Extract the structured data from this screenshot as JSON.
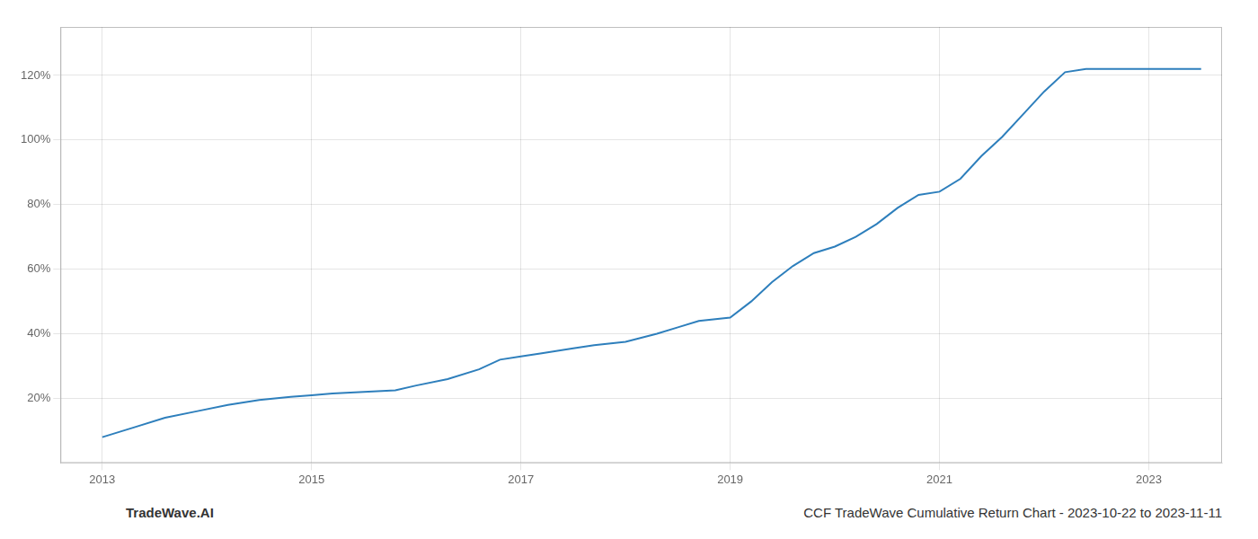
{
  "chart_data": {
    "type": "line",
    "x": [
      2013.0,
      2013.3,
      2013.6,
      2013.9,
      2014.2,
      2014.5,
      2014.8,
      2015.0,
      2015.2,
      2015.5,
      2015.8,
      2016.0,
      2016.3,
      2016.6,
      2016.8,
      2017.0,
      2017.2,
      2017.5,
      2017.7,
      2018.0,
      2018.3,
      2018.5,
      2018.7,
      2019.0,
      2019.2,
      2019.4,
      2019.6,
      2019.8,
      2020.0,
      2020.2,
      2020.4,
      2020.6,
      2020.8,
      2021.0,
      2021.2,
      2021.4,
      2021.6,
      2021.8,
      2022.0,
      2022.2,
      2022.4,
      2022.6,
      2022.8,
      2023.0,
      2023.2,
      2023.5
    ],
    "values": [
      8,
      11,
      14,
      16,
      18,
      19.5,
      20.5,
      21,
      21.5,
      22,
      22.5,
      24,
      26,
      29,
      32,
      33,
      34,
      35.5,
      36.5,
      37.5,
      40,
      42,
      44,
      45,
      50,
      56,
      61,
      65,
      67,
      70,
      74,
      79,
      83,
      84,
      88,
      95,
      101,
      108,
      115,
      121,
      122,
      122,
      122,
      122,
      122,
      122
    ],
    "color": "#2e7fbc",
    "xlim": [
      2012.6,
      2023.7
    ],
    "xticks": [
      2013,
      2015,
      2017,
      2019,
      2021,
      2023
    ],
    "ylim": [
      0,
      135
    ],
    "yticks": [
      {
        "value": 20,
        "label": "20%"
      },
      {
        "value": 40,
        "label": "40%"
      },
      {
        "value": 60,
        "label": "60%"
      },
      {
        "value": 80,
        "label": "80%"
      },
      {
        "value": 100,
        "label": "100%"
      },
      {
        "value": 120,
        "label": "120%"
      }
    ],
    "grid": true,
    "annotations": [
      "TradeWave.AI",
      "CCF TradeWave Cumulative Return Chart - 2023-10-22 to 2023-11-11"
    ]
  }
}
